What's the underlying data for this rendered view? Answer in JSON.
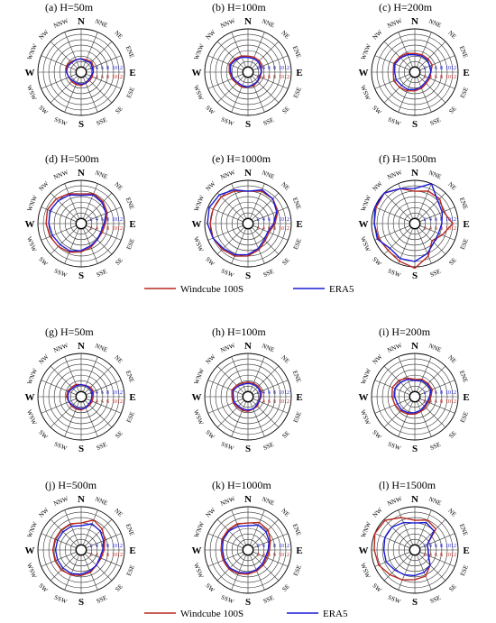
{
  "figure": {
    "legend": [
      {
        "label": "Windcube 100S",
        "color": "#b8281f"
      },
      {
        "label": "ERA5",
        "color": "#1a1ad6"
      }
    ]
  },
  "directions": [
    "N",
    "NNE",
    "NE",
    "ENE",
    "E",
    "ESE",
    "SE",
    "SSE",
    "S",
    "SSW",
    "SW",
    "WSW",
    "W",
    "WNW",
    "NW",
    "NNW"
  ],
  "ticks": [
    "2",
    "4",
    "6",
    "8",
    "10",
    "12"
  ],
  "chart_data": [
    {
      "type": "radar",
      "title": "(a) H=50m",
      "rmax": 14,
      "series": [
        {
          "name": "Windcube 100S",
          "color": "#b8281f",
          "values": [
            3,
            3,
            3.5,
            3,
            2.5,
            2.5,
            2.5,
            2.5,
            3,
            3,
            3,
            3,
            3.5,
            4,
            3.5,
            3
          ]
        },
        {
          "name": "ERA5",
          "color": "#1a1ad6",
          "values": [
            3,
            2.5,
            3,
            2.5,
            2.5,
            2,
            2,
            2.5,
            2.5,
            2.5,
            2.5,
            3,
            3.5,
            3.5,
            3,
            3
          ]
        }
      ]
    },
    {
      "type": "radar",
      "title": "(b) H=100m",
      "rmax": 14,
      "series": [
        {
          "name": "Windcube 100S",
          "color": "#b8281f",
          "values": [
            4,
            4,
            4,
            3.5,
            3,
            3,
            3,
            3.5,
            3.5,
            4,
            4,
            4.5,
            5,
            5.5,
            5,
            4.5
          ]
        },
        {
          "name": "ERA5",
          "color": "#1a1ad6",
          "values": [
            3.5,
            3.5,
            3.5,
            3,
            3,
            2.5,
            3,
            3,
            3.5,
            3.5,
            3.5,
            4,
            4.5,
            5,
            4.5,
            4
          ]
        }
      ]
    },
    {
      "type": "radar",
      "title": "(c) H=200m",
      "rmax": 14,
      "series": [
        {
          "name": "Windcube 100S",
          "color": "#b8281f",
          "values": [
            5,
            5,
            5,
            5,
            4,
            4,
            4,
            4.5,
            5,
            5.5,
            6,
            6.5,
            6,
            6.5,
            6,
            5.5
          ]
        },
        {
          "name": "ERA5",
          "color": "#1a1ad6",
          "values": [
            4.5,
            4.5,
            4.5,
            4,
            4,
            3.5,
            3.5,
            4,
            4.5,
            5,
            5,
            5.5,
            5.5,
            6,
            5.5,
            5
          ]
        }
      ]
    },
    {
      "type": "radar",
      "title": "(d) H=500m",
      "rmax": 14,
      "series": [
        {
          "name": "Windcube 100S",
          "color": "#b8281f",
          "values": [
            9,
            10,
            9.5,
            8.5,
            7,
            6.5,
            6.5,
            7.5,
            8.5,
            9.5,
            10,
            10.5,
            11,
            11.5,
            11,
            10
          ]
        },
        {
          "name": "ERA5",
          "color": "#1a1ad6",
          "values": [
            8.5,
            9.5,
            9,
            8,
            6.5,
            6,
            6.5,
            7,
            8,
            9,
            9,
            9.5,
            10,
            10.5,
            10,
            9.5
          ]
        }
      ]
    },
    {
      "type": "radar",
      "title": "(e) H=1000m",
      "rmax": 14,
      "series": [
        {
          "name": "Windcube 100S",
          "color": "#b8281f",
          "values": [
            10,
            11,
            11,
            10,
            8,
            6.5,
            7,
            8.5,
            10,
            11,
            11.5,
            12,
            12,
            12,
            12,
            11
          ]
        },
        {
          "name": "ERA5",
          "color": "#1a1ad6",
          "values": [
            10,
            11.5,
            11,
            9.5,
            7.5,
            6,
            6.5,
            8,
            9.5,
            10.5,
            11,
            12,
            13,
            13.5,
            13,
            11.5
          ]
        }
      ]
    },
    {
      "type": "radar",
      "title": "(f) H=1500m",
      "rmax": 14,
      "series": [
        {
          "name": "Windcube 100S",
          "color": "#b8281f",
          "values": [
            10,
            11,
            11,
            9.5,
            12,
            9,
            7,
            11,
            14.5,
            13,
            12,
            12.5,
            13,
            13.5,
            14,
            12
          ]
        },
        {
          "name": "ERA5",
          "color": "#1a1ad6",
          "values": [
            11,
            14,
            10,
            9,
            8,
            7.5,
            8,
            10,
            12,
            12,
            11,
            13,
            13,
            14,
            14,
            12
          ]
        }
      ]
    },
    {
      "type": "radar",
      "title": "(g) H=50m",
      "rmax": 14,
      "series": [
        {
          "name": "Windcube 100S",
          "color": "#b8281f",
          "values": [
            2.5,
            2.5,
            3,
            3,
            2.5,
            2.5,
            2.5,
            2.5,
            3,
            3,
            3,
            3,
            3.5,
            3.5,
            3,
            3
          ]
        },
        {
          "name": "ERA5",
          "color": "#1a1ad6",
          "values": [
            2.5,
            2.5,
            2.5,
            2.5,
            2,
            2,
            2,
            2.5,
            2.5,
            2.5,
            2.5,
            3,
            3,
            3,
            2.5,
            2.5
          ]
        }
      ]
    },
    {
      "type": "radar",
      "title": "(h) H=100m",
      "rmax": 14,
      "series": [
        {
          "name": "Windcube 100S",
          "color": "#b8281f",
          "values": [
            3.5,
            3.5,
            3.5,
            3.5,
            3,
            2.5,
            3,
            3,
            3.5,
            3.5,
            3.5,
            4,
            4,
            4.5,
            4,
            3.5
          ]
        },
        {
          "name": "ERA5",
          "color": "#1a1ad6",
          "values": [
            3,
            3,
            3,
            3,
            2.5,
            2.5,
            2.5,
            3,
            3,
            3,
            3,
            3.5,
            3.5,
            4,
            3.5,
            3
          ]
        }
      ]
    },
    {
      "type": "radar",
      "title": "(i) H=200m",
      "rmax": 14,
      "series": [
        {
          "name": "Windcube 100S",
          "color": "#b8281f",
          "values": [
            4.5,
            5,
            5,
            5,
            4,
            3.5,
            3.5,
            4,
            4.5,
            5,
            5.5,
            6,
            6.5,
            7,
            6.5,
            5.5
          ]
        },
        {
          "name": "ERA5",
          "color": "#1a1ad6",
          "values": [
            4,
            4.5,
            4.5,
            4.5,
            3.5,
            3,
            3,
            3.5,
            4,
            4.5,
            5,
            5,
            5.5,
            6,
            5.5,
            5
          ]
        }
      ]
    },
    {
      "type": "radar",
      "title": "(j) H=500m",
      "rmax": 14,
      "series": [
        {
          "name": "Windcube 100S",
          "color": "#b8281f",
          "values": [
            8,
            10,
            9,
            7.5,
            6.5,
            6,
            6,
            7,
            7.5,
            8,
            8.5,
            8.5,
            8.5,
            8.5,
            8.5,
            8.5
          ]
        },
        {
          "name": "ERA5",
          "color": "#1a1ad6",
          "values": [
            7,
            8.5,
            8,
            7,
            6,
            5.5,
            6,
            6.5,
            7,
            7.5,
            7.5,
            7.5,
            7.5,
            7.5,
            7.5,
            7.5
          ]
        }
      ]
    },
    {
      "type": "radar",
      "title": "(k) H=1000m",
      "rmax": 14,
      "series": [
        {
          "name": "Windcube 100S",
          "color": "#b8281f",
          "values": [
            8,
            9,
            8.5,
            7,
            6,
            5.5,
            6,
            6.5,
            7,
            7.5,
            8,
            8,
            8,
            8.5,
            8.5,
            8.5
          ]
        },
        {
          "name": "ERA5",
          "color": "#1a1ad6",
          "values": [
            7,
            8,
            7.5,
            6.5,
            5.5,
            5,
            5.5,
            6,
            6.5,
            7,
            7.5,
            7.5,
            7.5,
            8,
            8,
            7.5
          ]
        }
      ]
    },
    {
      "type": "radar",
      "title": "(l) H=1500m",
      "rmax": 14,
      "series": [
        {
          "name": "Windcube 100S",
          "color": "#b8281f",
          "values": [
            9,
            10,
            9,
            3,
            3,
            3.5,
            6,
            8.5,
            9,
            10,
            11,
            12.5,
            13,
            14,
            13.5,
            11
          ]
        },
        {
          "name": "ERA5",
          "color": "#1a1ad6",
          "values": [
            8,
            9,
            8,
            3,
            3,
            3.5,
            6,
            7,
            7.5,
            8,
            8.5,
            9.5,
            9.5,
            10,
            10,
            9
          ]
        }
      ]
    }
  ]
}
